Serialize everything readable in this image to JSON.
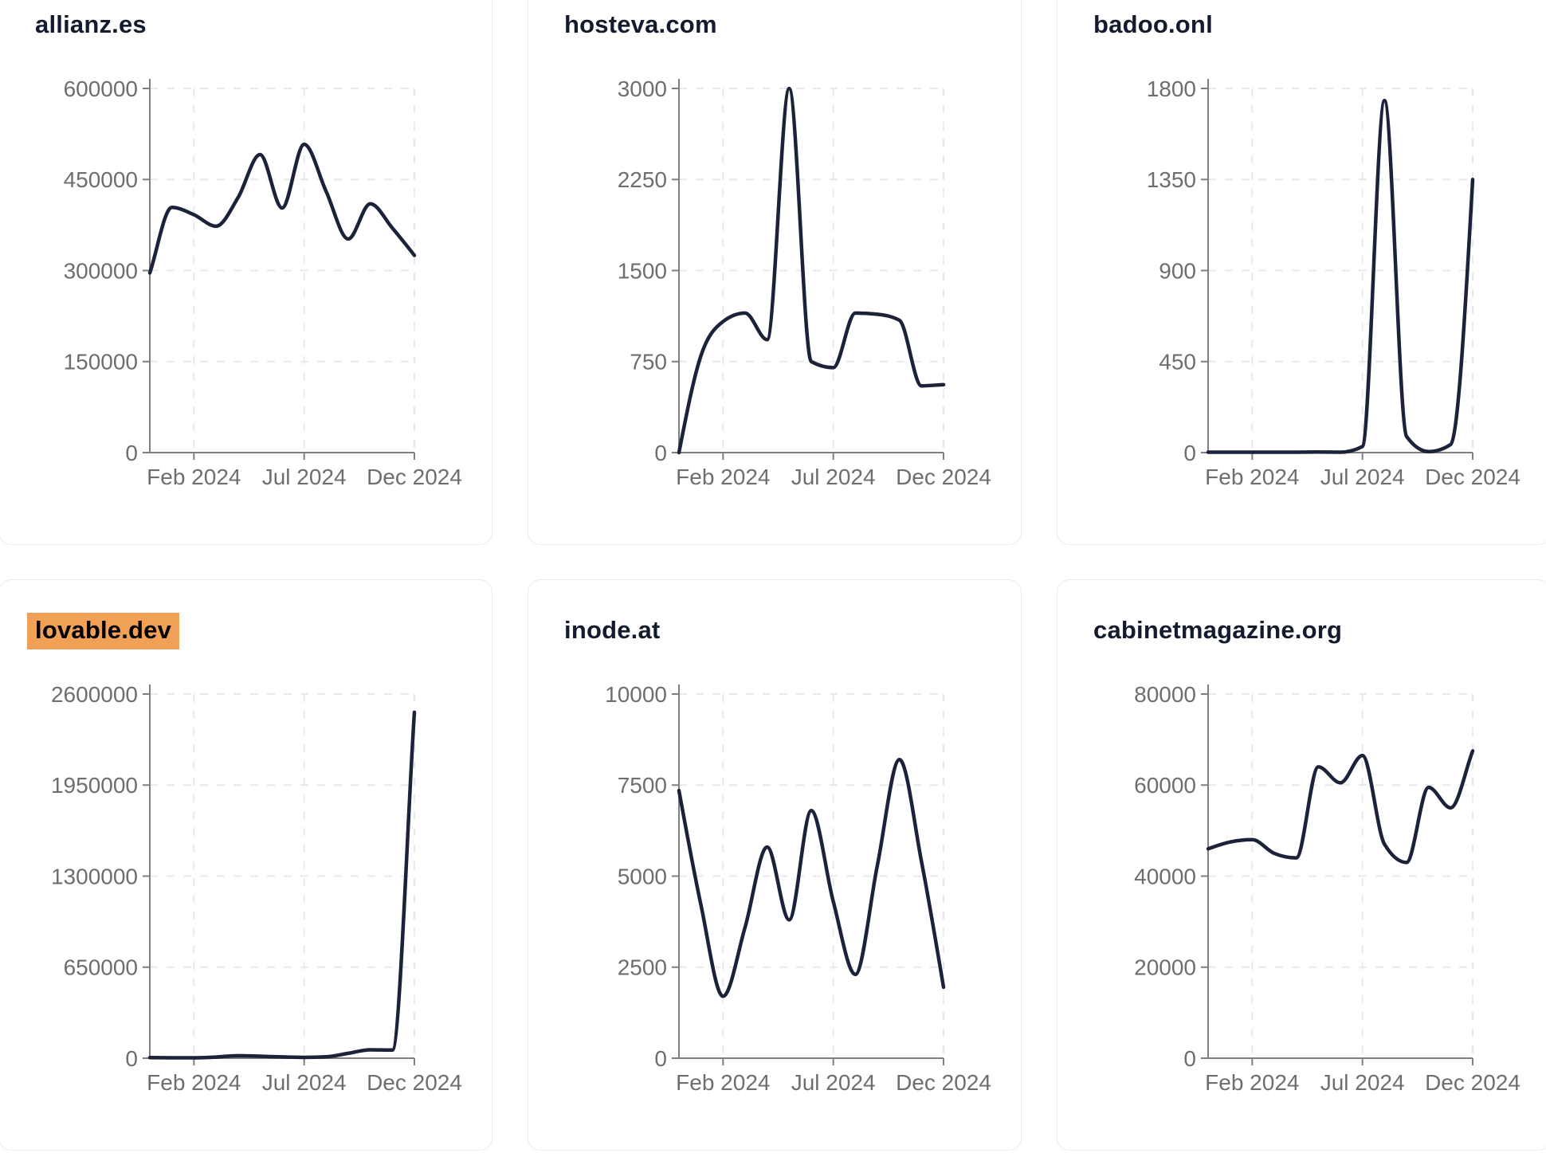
{
  "page": {
    "background": "#ffffff"
  },
  "theme": {
    "card_background": "#ffffff",
    "card_border": "#e9ebf4",
    "title_color": "#131b2e",
    "highlight_color": "#f0a155",
    "highlight_text_color": "#000000",
    "line_color": "#1b2239",
    "tick_label_color": "#6e6e6e",
    "axis_color": "#7f7f7f",
    "grid_color": "#e9e9ed"
  },
  "x_axis": {
    "tick_labels": [
      "Feb 2024",
      "Jul 2024",
      "Dec 2024"
    ],
    "tick_month_indices": [
      2,
      7,
      12
    ]
  },
  "chart_data": [
    {
      "type": "line",
      "title": "allianz.es",
      "highlighted": false,
      "x": [
        "2023-12",
        "2024-01",
        "2024-02",
        "2024-03",
        "2024-04",
        "2024-05",
        "2024-06",
        "2024-07",
        "2024-08",
        "2024-09",
        "2024-10",
        "2024-11",
        "2024-12"
      ],
      "values": [
        296000,
        404000,
        392000,
        373000,
        420000,
        491000,
        403000,
        508000,
        430000,
        352000,
        410000,
        370000,
        325000
      ],
      "y_ticks": [
        0,
        150000,
        300000,
        450000,
        600000
      ],
      "ylim": [
        0,
        600000
      ],
      "x_tick_labels": [
        "Feb 2024",
        "Jul 2024",
        "Dec 2024"
      ],
      "x_tick_indices": [
        2,
        7,
        12
      ],
      "xlabel": "",
      "ylabel": "",
      "grid": true,
      "legend": "none"
    },
    {
      "type": "line",
      "title": "hosteva.com",
      "highlighted": false,
      "x": [
        "2023-12",
        "2024-01",
        "2024-02",
        "2024-03",
        "2024-04",
        "2024-05",
        "2024-06",
        "2024-07",
        "2024-08",
        "2024-09",
        "2024-10",
        "2024-11",
        "2024-12"
      ],
      "values": [
        0,
        800,
        1080,
        1150,
        930,
        3000,
        750,
        700,
        1150,
        1140,
        1090,
        550,
        560
      ],
      "y_ticks": [
        0,
        750,
        1500,
        2250,
        3000
      ],
      "ylim": [
        0,
        3000
      ],
      "x_tick_labels": [
        "Feb 2024",
        "Jul 2024",
        "Dec 2024"
      ],
      "x_tick_indices": [
        2,
        7,
        12
      ],
      "xlabel": "",
      "ylabel": "",
      "grid": true,
      "legend": "none"
    },
    {
      "type": "line",
      "title": "badoo.onl",
      "highlighted": false,
      "x": [
        "2023-12",
        "2024-01",
        "2024-02",
        "2024-03",
        "2024-04",
        "2024-05",
        "2024-06",
        "2024-07",
        "2024-08",
        "2024-09",
        "2024-10",
        "2024-11",
        "2024-12"
      ],
      "values": [
        2,
        2,
        2,
        2,
        2,
        3,
        2,
        30,
        1740,
        80,
        5,
        40,
        1350
      ],
      "y_ticks": [
        0,
        450,
        900,
        1350,
        1800
      ],
      "ylim": [
        0,
        1800
      ],
      "x_tick_labels": [
        "Feb 2024",
        "Jul 2024",
        "Dec 2024"
      ],
      "x_tick_indices": [
        2,
        7,
        12
      ],
      "xlabel": "",
      "ylabel": "",
      "grid": true,
      "legend": "none"
    },
    {
      "type": "line",
      "title": "lovable.dev",
      "highlighted": true,
      "x": [
        "2023-12",
        "2024-01",
        "2024-02",
        "2024-03",
        "2024-04",
        "2024-05",
        "2024-06",
        "2024-07",
        "2024-08",
        "2024-09",
        "2024-10",
        "2024-11",
        "2024-12"
      ],
      "values": [
        4000,
        3000,
        2500,
        8000,
        18000,
        14000,
        9000,
        6000,
        10000,
        35000,
        60000,
        58000,
        2470000
      ],
      "y_ticks": [
        0,
        650000,
        1300000,
        1950000,
        2600000
      ],
      "ylim": [
        0,
        2600000
      ],
      "x_tick_labels": [
        "Feb 2024",
        "Jul 2024",
        "Dec 2024"
      ],
      "x_tick_indices": [
        2,
        7,
        12
      ],
      "xlabel": "",
      "ylabel": "",
      "grid": true,
      "legend": "none"
    },
    {
      "type": "line",
      "title": "inode.at",
      "highlighted": false,
      "x": [
        "2023-12",
        "2024-01",
        "2024-02",
        "2024-03",
        "2024-04",
        "2024-05",
        "2024-06",
        "2024-07",
        "2024-08",
        "2024-09",
        "2024-10",
        "2024-11",
        "2024-12"
      ],
      "values": [
        7350,
        4200,
        1700,
        3600,
        5800,
        3800,
        6800,
        4300,
        2300,
        5300,
        8200,
        5400,
        1950
      ],
      "y_ticks": [
        0,
        2500,
        5000,
        7500,
        10000
      ],
      "ylim": [
        0,
        10000
      ],
      "x_tick_labels": [
        "Feb 2024",
        "Jul 2024",
        "Dec 2024"
      ],
      "x_tick_indices": [
        2,
        7,
        12
      ],
      "xlabel": "",
      "ylabel": "",
      "grid": true,
      "legend": "none"
    },
    {
      "type": "line",
      "title": "cabinetmagazine.org",
      "highlighted": false,
      "x": [
        "2023-12",
        "2024-01",
        "2024-02",
        "2024-03",
        "2024-04",
        "2024-05",
        "2024-06",
        "2024-07",
        "2024-08",
        "2024-09",
        "2024-10",
        "2024-11",
        "2024-12"
      ],
      "values": [
        46000,
        47500,
        48000,
        45000,
        44000,
        64000,
        60500,
        66500,
        47000,
        43000,
        59500,
        55000,
        67500
      ],
      "y_ticks": [
        0,
        20000,
        40000,
        60000,
        80000
      ],
      "ylim": [
        0,
        80000
      ],
      "x_tick_labels": [
        "Feb 2024",
        "Jul 2024",
        "Dec 2024"
      ],
      "x_tick_indices": [
        2,
        7,
        12
      ],
      "xlabel": "",
      "ylabel": "",
      "grid": true,
      "legend": "none"
    }
  ]
}
